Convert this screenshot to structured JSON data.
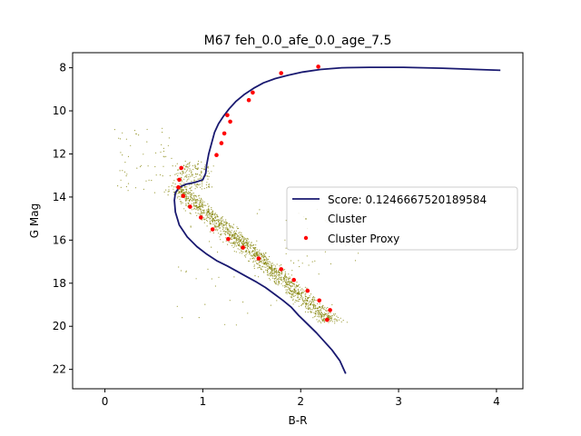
{
  "chart_data": {
    "type": "scatter",
    "title": "M67 feh_0.0_afe_0.0_age_7.5",
    "xlabel": "B-R",
    "ylabel": "G Mag",
    "xlim": [
      -0.33,
      4.27
    ],
    "ylim": [
      22.9,
      7.3
    ],
    "y_inverted": true,
    "x_ticks": [
      0,
      1,
      2,
      3,
      4
    ],
    "x_tick_labels": [
      "0",
      "1",
      "2",
      "3",
      "4"
    ],
    "y_ticks": [
      8,
      10,
      12,
      14,
      16,
      18,
      20,
      22
    ],
    "y_tick_labels": [
      "8",
      "10",
      "12",
      "14",
      "16",
      "18",
      "20",
      "22"
    ],
    "grid": false,
    "legend_position": "center-right",
    "series": [
      {
        "name": "Score: 0.1246667520189584",
        "kind": "line",
        "color": "#191970",
        "x": [
          2.46,
          2.4,
          2.32,
          2.24,
          2.16,
          2.07,
          1.98,
          1.9,
          1.82,
          1.73,
          1.64,
          1.55,
          1.45,
          1.35,
          1.25,
          1.14,
          1.04,
          0.94,
          0.84,
          0.76,
          0.72,
          0.71,
          0.72,
          0.76,
          0.83,
          0.92,
          1.0,
          1.03,
          1.04,
          1.06,
          1.09,
          1.12,
          1.16,
          1.21,
          1.27,
          1.34,
          1.42,
          1.52,
          1.62,
          1.74,
          1.87,
          2.02,
          2.2,
          2.42,
          2.7,
          3.05,
          3.45,
          3.8,
          4.04
        ],
        "y": [
          22.2,
          21.6,
          21.1,
          20.7,
          20.3,
          19.9,
          19.5,
          19.1,
          18.8,
          18.5,
          18.2,
          17.95,
          17.7,
          17.45,
          17.2,
          16.95,
          16.65,
          16.3,
          15.85,
          15.3,
          14.7,
          14.15,
          13.8,
          13.55,
          13.4,
          13.32,
          13.2,
          12.9,
          12.5,
          12.0,
          11.5,
          11.0,
          10.6,
          10.25,
          9.9,
          9.55,
          9.25,
          8.95,
          8.7,
          8.5,
          8.35,
          8.2,
          8.08,
          8.0,
          7.98,
          7.98,
          8.02,
          8.08,
          8.12
        ]
      },
      {
        "name": "Cluster",
        "kind": "scatter",
        "color": "#808000",
        "note": "dense main-sequence field of faint points; generated along the sequence"
      },
      {
        "name": "Cluster Proxy",
        "kind": "scatter",
        "color": "#ff0000",
        "x": [
          2.18,
          1.8,
          1.51,
          1.47,
          1.25,
          1.28,
          1.22,
          1.19,
          1.14,
          0.78,
          0.76,
          0.75,
          0.8,
          0.87,
          0.98,
          1.1,
          1.26,
          1.41,
          1.57,
          1.8,
          1.93,
          2.07,
          2.19,
          2.3,
          2.27
        ],
        "y": [
          7.95,
          8.25,
          9.15,
          9.5,
          10.2,
          10.5,
          11.05,
          11.5,
          12.05,
          12.65,
          13.2,
          13.55,
          13.95,
          14.45,
          14.95,
          15.5,
          15.95,
          16.35,
          16.85,
          17.35,
          17.85,
          18.35,
          18.8,
          19.25,
          19.7
        ]
      }
    ]
  }
}
